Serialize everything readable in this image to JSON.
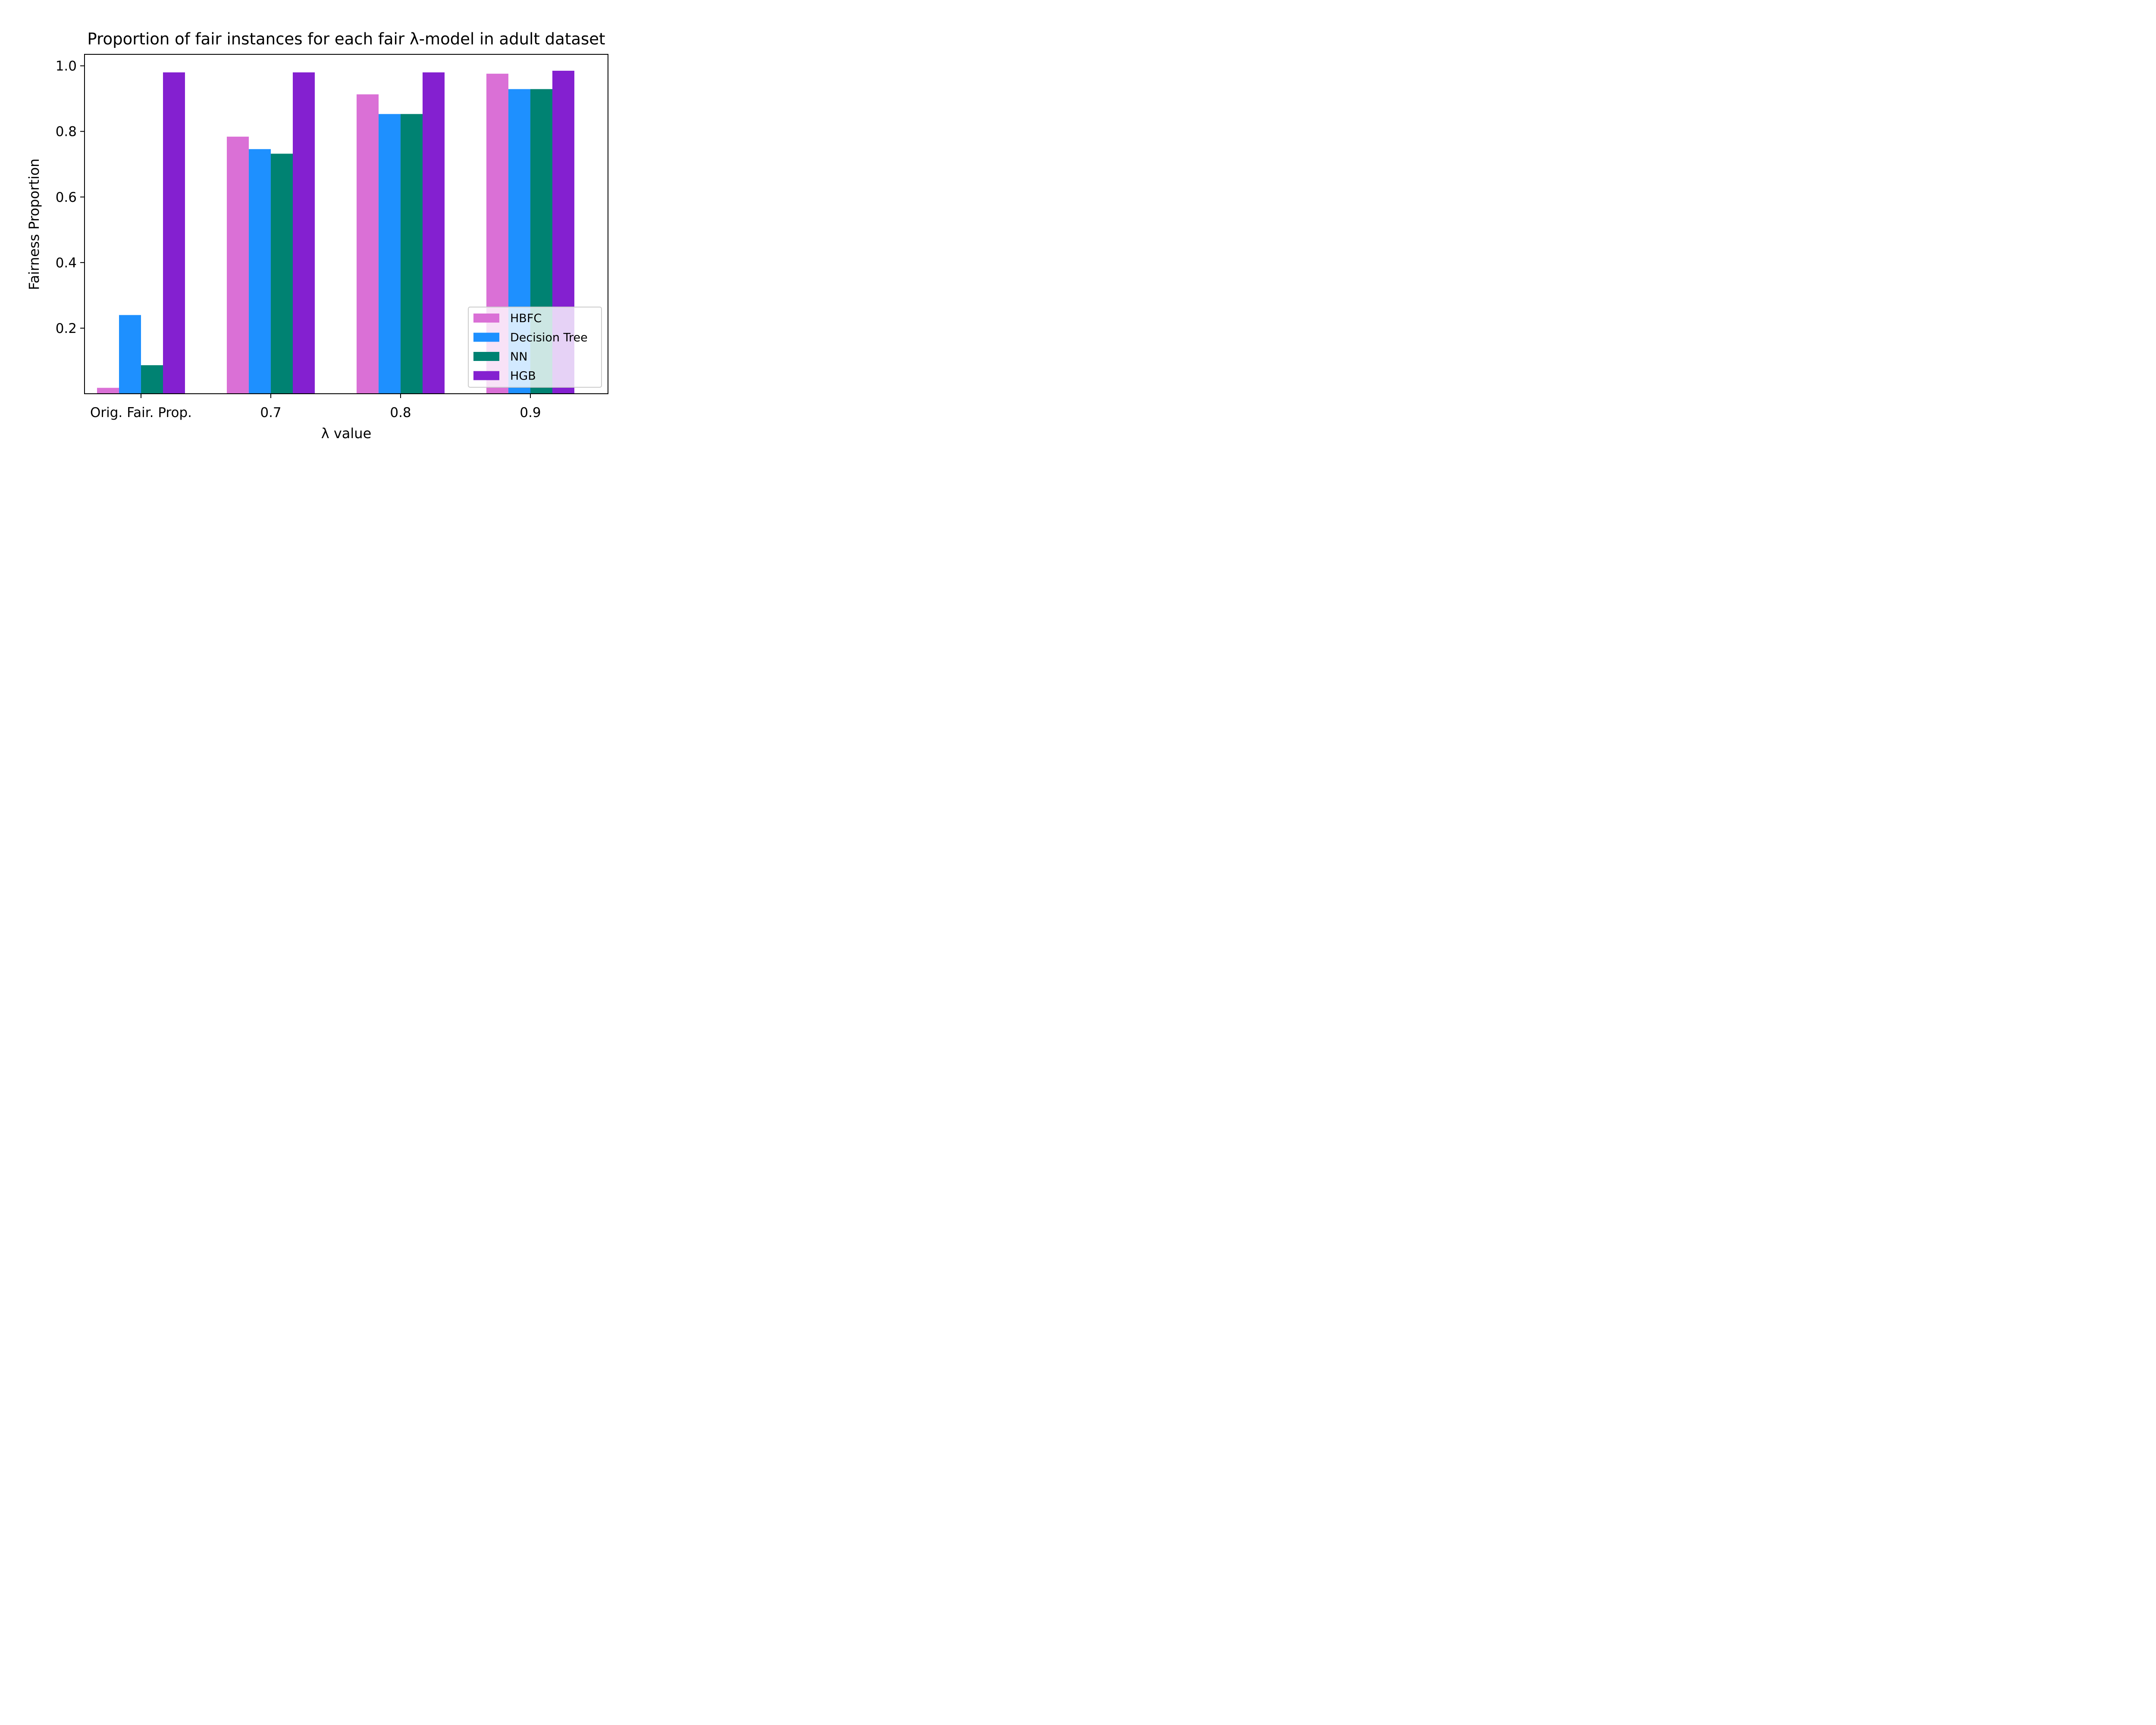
{
  "chart_data": {
    "type": "bar",
    "title": "Proportion of fair instances for each fair λ-model in adult dataset",
    "xlabel": "λ value",
    "ylabel": "Fairness Proportion",
    "categories": [
      "Orig. Fair. Prop.",
      "0.7",
      "0.8",
      "0.9"
    ],
    "yticks": [
      "0.2",
      "0.4",
      "0.6",
      "0.8",
      "1.0"
    ],
    "ylim": [
      0.0,
      1.035
    ],
    "series": [
      {
        "name": "HBFC",
        "color": "#da70d6",
        "values": [
          0.018,
          0.784,
          0.913,
          0.976
        ]
      },
      {
        "name": "Decision Tree",
        "color": "#1e90ff",
        "values": [
          0.24,
          0.746,
          0.853,
          0.929
        ]
      },
      {
        "name": "NN",
        "color": "#008272",
        "values": [
          0.087,
          0.732,
          0.853,
          0.929
        ]
      },
      {
        "name": "HGB",
        "color": "#8420d0",
        "values": [
          0.98,
          0.98,
          0.98,
          0.985
        ]
      }
    ],
    "legend_position": "lower-right",
    "grid": false
  }
}
